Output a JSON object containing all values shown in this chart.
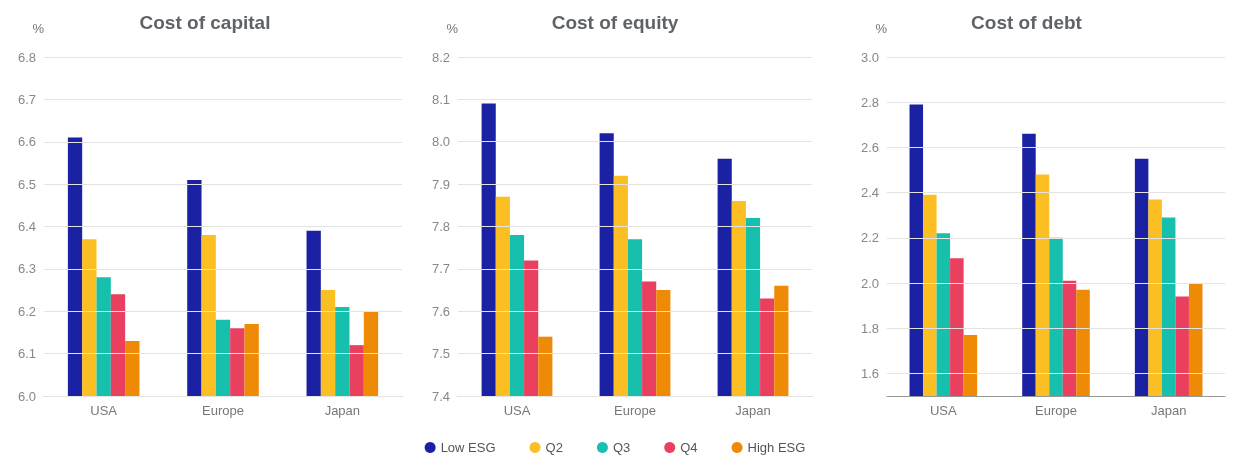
{
  "chart_data": [
    {
      "type": "bar",
      "title": "Cost of capital",
      "ylabel": "%",
      "categories": [
        "USA",
        "Europe",
        "Japan"
      ],
      "series": [
        {
          "color": "#1a22a3",
          "values": [
            6.61,
            6.51,
            6.39
          ]
        },
        {
          "color": "#fbbf24",
          "values": [
            6.37,
            6.38,
            6.25
          ]
        },
        {
          "color": "#16c0ad",
          "values": [
            6.28,
            6.18,
            6.21
          ]
        },
        {
          "color": "#e8405e",
          "values": [
            6.24,
            6.16,
            6.12
          ]
        },
        {
          "color": "#ef8a06",
          "values": [
            6.13,
            6.17,
            6.2
          ]
        }
      ],
      "ylim": [
        6.0,
        6.8
      ],
      "yticks": [
        {
          "value": 6,
          "label": "6.0"
        },
        6.1,
        6.2,
        6.3,
        6.4,
        6.5,
        6.6,
        6.7,
        6.8
      ],
      "grid": "y",
      "legend": false
    },
    {
      "type": "bar",
      "title": "Cost of equity",
      "ylabel": "%",
      "categories": [
        "USA",
        "Europe",
        "Japan"
      ],
      "series": [
        {
          "name": "Low ESG",
          "color": "#1a22a3",
          "values": [
            8.09,
            8.02,
            7.96
          ]
        },
        {
          "name": "Q2",
          "color": "#fbbf24",
          "values": [
            7.87,
            7.92,
            7.86
          ]
        },
        {
          "name": "Q3",
          "color": "#16c0ad",
          "values": [
            7.78,
            7.77,
            7.82
          ]
        },
        {
          "name": "Q4",
          "color": "#e8405e",
          "values": [
            7.72,
            7.67,
            7.63
          ]
        },
        {
          "name": "High ESG",
          "color": "#ef8a06",
          "values": [
            7.54,
            7.65,
            7.66
          ]
        }
      ],
      "ylim": [
        7.4,
        8.2
      ],
      "yticks": [
        7.4,
        7.5,
        7.6,
        7.7,
        7.8,
        7.9,
        {
          "value": 8,
          "label": "8.0"
        },
        8.1,
        8.2
      ],
      "grid": "y",
      "legend": "bottom"
    },
    {
      "type": "bar",
      "title": "Cost of debt",
      "ylabel": "%",
      "categories": [
        "USA",
        "Europe",
        "Japan"
      ],
      "series": [
        {
          "color": "#1a22a3",
          "values": [
            2.79,
            2.66,
            2.55
          ]
        },
        {
          "color": "#fbbf24",
          "values": [
            2.39,
            2.48,
            2.37
          ]
        },
        {
          "color": "#16c0ad",
          "values": [
            2.22,
            2.2,
            2.29
          ]
        },
        {
          "color": "#e8405e",
          "values": [
            2.11,
            2.01,
            1.94
          ]
        },
        {
          "color": "#ef8a06",
          "values": [
            1.77,
            1.97,
            2.0
          ]
        }
      ],
      "ylim": [
        1.5,
        3.0
      ],
      "yticks": [
        1.6,
        1.8,
        {
          "value": 2,
          "label": "2.0"
        },
        2.2,
        2.4,
        2.6,
        2.8,
        {
          "value": 3,
          "label": "3.0"
        }
      ],
      "grid": "y",
      "legend": false
    }
  ]
}
